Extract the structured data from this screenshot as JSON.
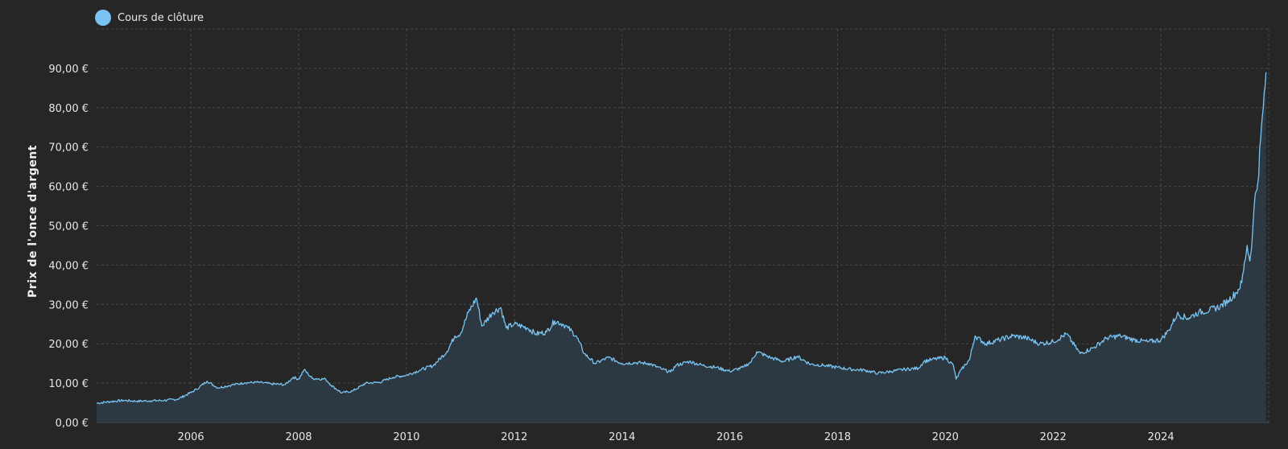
{
  "chart_data": {
    "type": "area",
    "title": "",
    "xlabel": "",
    "ylabel": "Prix de l'once d'argent",
    "legend": {
      "placement": "top-left",
      "entries": [
        "Cours de clôture"
      ]
    },
    "series": [
      {
        "name": "Cours de clôture",
        "color": "#79c4f2",
        "points": [
          [
            2004.25,
            4.9
          ],
          [
            2004.5,
            5.3
          ],
          [
            2004.75,
            5.6
          ],
          [
            2005.0,
            5.4
          ],
          [
            2005.25,
            5.5
          ],
          [
            2005.5,
            5.6
          ],
          [
            2005.75,
            5.9
          ],
          [
            2006.0,
            7.6
          ],
          [
            2006.1,
            8.4
          ],
          [
            2006.3,
            10.5
          ],
          [
            2006.5,
            8.8
          ],
          [
            2006.75,
            9.5
          ],
          [
            2007.0,
            10.1
          ],
          [
            2007.25,
            10.2
          ],
          [
            2007.5,
            9.8
          ],
          [
            2007.75,
            9.6
          ],
          [
            2007.9,
            11.5
          ],
          [
            2008.0,
            11.0
          ],
          [
            2008.1,
            13.4
          ],
          [
            2008.25,
            11.2
          ],
          [
            2008.5,
            11.0
          ],
          [
            2008.6,
            9.5
          ],
          [
            2008.8,
            7.5
          ],
          [
            2009.0,
            8.0
          ],
          [
            2009.25,
            10.0
          ],
          [
            2009.5,
            10.2
          ],
          [
            2009.75,
            11.5
          ],
          [
            2010.0,
            12.0
          ],
          [
            2010.25,
            13.3
          ],
          [
            2010.5,
            14.5
          ],
          [
            2010.75,
            18.0
          ],
          [
            2010.9,
            22.0
          ],
          [
            2011.0,
            22.5
          ],
          [
            2011.15,
            28.0
          ],
          [
            2011.3,
            31.6
          ],
          [
            2011.4,
            24.5
          ],
          [
            2011.6,
            28.0
          ],
          [
            2011.75,
            29.2
          ],
          [
            2011.85,
            24.0
          ],
          [
            2012.0,
            25.0
          ],
          [
            2012.25,
            24.0
          ],
          [
            2012.4,
            22.5
          ],
          [
            2012.6,
            23.0
          ],
          [
            2012.75,
            25.8
          ],
          [
            2012.9,
            25.0
          ],
          [
            2013.0,
            24.0
          ],
          [
            2013.15,
            22.0
          ],
          [
            2013.3,
            17.5
          ],
          [
            2013.5,
            15.0
          ],
          [
            2013.75,
            16.5
          ],
          [
            2014.0,
            15.0
          ],
          [
            2014.25,
            15.2
          ],
          [
            2014.5,
            15.0
          ],
          [
            2014.75,
            13.5
          ],
          [
            2014.9,
            12.8
          ],
          [
            2015.0,
            14.5
          ],
          [
            2015.25,
            15.5
          ],
          [
            2015.5,
            14.5
          ],
          [
            2015.75,
            14.0
          ],
          [
            2016.0,
            13.0
          ],
          [
            2016.25,
            14.0
          ],
          [
            2016.4,
            15.5
          ],
          [
            2016.5,
            18.0
          ],
          [
            2016.75,
            16.5
          ],
          [
            2017.0,
            15.5
          ],
          [
            2017.25,
            16.8
          ],
          [
            2017.5,
            14.8
          ],
          [
            2017.75,
            14.5
          ],
          [
            2018.0,
            14.0
          ],
          [
            2018.25,
            13.5
          ],
          [
            2018.5,
            13.3
          ],
          [
            2018.75,
            12.5
          ],
          [
            2019.0,
            13.0
          ],
          [
            2019.25,
            13.5
          ],
          [
            2019.5,
            13.8
          ],
          [
            2019.6,
            15.5
          ],
          [
            2019.75,
            16.0
          ],
          [
            2020.0,
            16.5
          ],
          [
            2020.15,
            14.5
          ],
          [
            2020.2,
            11.0
          ],
          [
            2020.3,
            13.5
          ],
          [
            2020.45,
            16.0
          ],
          [
            2020.55,
            22.0
          ],
          [
            2020.75,
            20.0
          ],
          [
            2021.0,
            21.0
          ],
          [
            2021.25,
            22.0
          ],
          [
            2021.5,
            21.5
          ],
          [
            2021.75,
            20.0
          ],
          [
            2022.0,
            20.5
          ],
          [
            2022.25,
            22.5
          ],
          [
            2022.5,
            17.5
          ],
          [
            2022.75,
            19.0
          ],
          [
            2023.0,
            21.5
          ],
          [
            2023.25,
            22.0
          ],
          [
            2023.5,
            21.0
          ],
          [
            2023.75,
            20.5
          ],
          [
            2024.0,
            21.0
          ],
          [
            2024.15,
            23.5
          ],
          [
            2024.3,
            27.5
          ],
          [
            2024.5,
            26.5
          ],
          [
            2024.7,
            28.0
          ],
          [
            2024.9,
            28.5
          ],
          [
            2025.1,
            29.5
          ],
          [
            2025.25,
            31.0
          ],
          [
            2025.4,
            33.0
          ],
          [
            2025.5,
            35.5
          ],
          [
            2025.6,
            45.0
          ],
          [
            2025.65,
            41.0
          ],
          [
            2025.7,
            48.0
          ],
          [
            2025.75,
            58.0
          ],
          [
            2025.8,
            61.0
          ],
          [
            2025.85,
            72.0
          ],
          [
            2025.9,
            80.0
          ],
          [
            2025.95,
            89.0
          ]
        ]
      }
    ],
    "xlim": [
      2004.25,
      2026.0
    ],
    "ylim": [
      0,
      100
    ],
    "x_ticks": [
      {
        "value": 2006,
        "label": "2006"
      },
      {
        "value": 2008,
        "label": "2008"
      },
      {
        "value": 2010,
        "label": "2010"
      },
      {
        "value": 2012,
        "label": "2012"
      },
      {
        "value": 2014,
        "label": "2014"
      },
      {
        "value": 2016,
        "label": "2016"
      },
      {
        "value": 2018,
        "label": "2018"
      },
      {
        "value": 2020,
        "label": "2020"
      },
      {
        "value": 2022,
        "label": "2022"
      },
      {
        "value": 2024,
        "label": "2024"
      }
    ],
    "y_ticks": [
      {
        "value": 0,
        "label": "0,00 €"
      },
      {
        "value": 10,
        "label": "10,00 €"
      },
      {
        "value": 20,
        "label": "20,00 €"
      },
      {
        "value": 30,
        "label": "30,00 €"
      },
      {
        "value": 40,
        "label": "40,00 €"
      },
      {
        "value": 50,
        "label": "50,00 €"
      },
      {
        "value": 60,
        "label": "60,00 €"
      },
      {
        "value": 70,
        "label": "70,00 €"
      },
      {
        "value": 80,
        "label": "80,00 €"
      },
      {
        "value": 90,
        "label": "90,00 €"
      }
    ],
    "grid": true,
    "colors": {
      "background": "#262626",
      "grid": "#4a4a4a",
      "line": "#79c4f2",
      "fill": "#2c3a44",
      "text": "#e6e6e6"
    }
  }
}
